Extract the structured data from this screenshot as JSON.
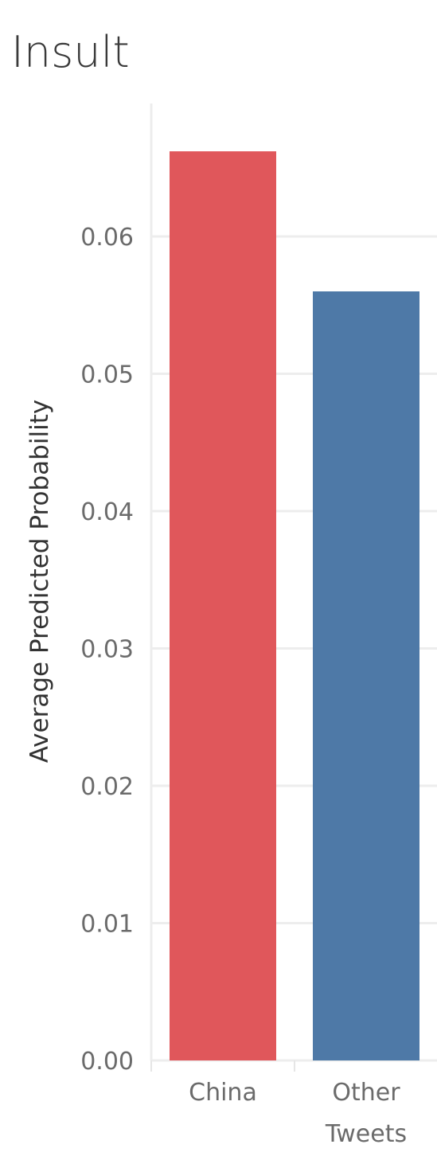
{
  "chart_data": {
    "type": "bar",
    "title": "Insult",
    "ylabel": "Average Predicted Probability",
    "xlabel": "",
    "categories": [
      "China",
      "Other Tweets"
    ],
    "category_lines": [
      [
        "China"
      ],
      [
        "Other",
        "Tweets"
      ]
    ],
    "values": [
      0.0662,
      0.056
    ],
    "colors": [
      "#e0575b",
      "#4e79a7"
    ],
    "ylim": [
      0,
      0.07
    ],
    "yticks": [
      0.0,
      0.01,
      0.02,
      0.03,
      0.04,
      0.05,
      0.06
    ],
    "ytick_labels": [
      "0.00",
      "0.01",
      "0.02",
      "0.03",
      "0.04",
      "0.05",
      "0.06"
    ],
    "grid": true,
    "legend": "none"
  }
}
